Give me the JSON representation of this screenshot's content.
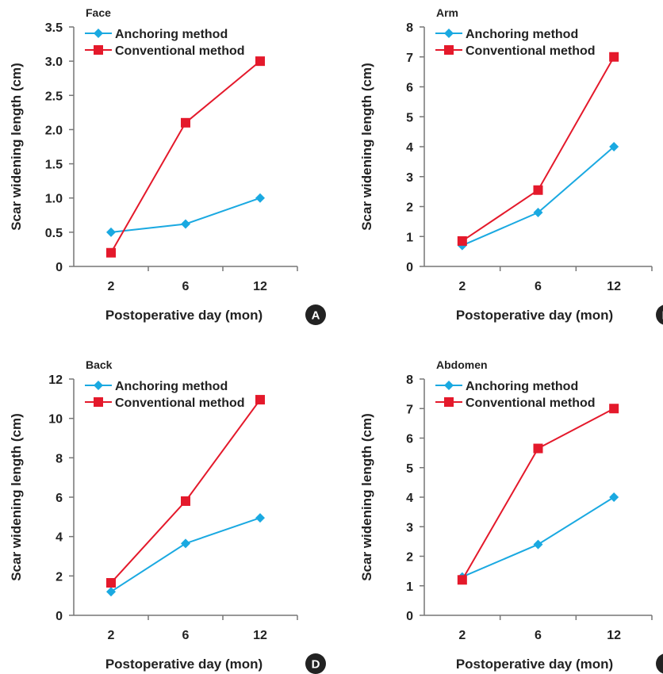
{
  "colors": {
    "anchoring": "#1AA9E1",
    "conventional": "#E4192B",
    "axis": "#777777",
    "badge": "#222222"
  },
  "chart_data": [
    {
      "type": "line",
      "title": "Face",
      "panel_label": "A",
      "xlabel": "Postoperative day (mon)",
      "ylabel": "Scar widening length (cm)",
      "categories": [
        "2",
        "6",
        "12"
      ],
      "ylim": [
        0,
        3.5
      ],
      "yticks": [
        "0",
        "0.5",
        "1.0",
        "1.5",
        "2.0",
        "2.5",
        "3.0",
        "3.5"
      ],
      "grid": false,
      "legend": "top-left",
      "series": [
        {
          "name": "Anchoring method",
          "marker": "diamond",
          "values": [
            0.5,
            0.62,
            1.0
          ]
        },
        {
          "name": "Conventional method",
          "marker": "square",
          "values": [
            0.2,
            2.1,
            3.0
          ]
        }
      ]
    },
    {
      "type": "line",
      "title": "Arm",
      "panel_label": "B",
      "xlabel": "Postoperative day (mon)",
      "ylabel": "Scar widening length (cm)",
      "categories": [
        "2",
        "6",
        "12"
      ],
      "ylim": [
        0,
        8
      ],
      "yticks": [
        "0",
        "1",
        "2",
        "3",
        "4",
        "5",
        "6",
        "7",
        "8"
      ],
      "grid": false,
      "legend": "top-left",
      "series": [
        {
          "name": "Anchoring method",
          "marker": "diamond",
          "values": [
            0.7,
            1.8,
            4.0
          ]
        },
        {
          "name": "Conventional method",
          "marker": "square",
          "values": [
            0.85,
            2.55,
            7.0
          ]
        }
      ]
    },
    {
      "type": "line",
      "title": "Back",
      "panel_label": "D",
      "xlabel": "Postoperative day (mon)",
      "ylabel": "Scar widening length (cm)",
      "categories": [
        "2",
        "6",
        "12"
      ],
      "ylim": [
        0,
        12
      ],
      "yticks": [
        "0",
        "2",
        "4",
        "6",
        "8",
        "10",
        "12"
      ],
      "grid": false,
      "legend": "top-left",
      "series": [
        {
          "name": "Anchoring method",
          "marker": "diamond",
          "values": [
            1.2,
            3.65,
            4.95
          ]
        },
        {
          "name": "Conventional method",
          "marker": "square",
          "values": [
            1.65,
            5.8,
            10.95
          ]
        }
      ]
    },
    {
      "type": "line",
      "title": "Abdomen",
      "panel_label": "E",
      "xlabel": "Postoperative day (mon)",
      "ylabel": "Scar widening length (cm)",
      "categories": [
        "2",
        "6",
        "12"
      ],
      "ylim": [
        0,
        8
      ],
      "yticks": [
        "0",
        "1",
        "2",
        "3",
        "4",
        "5",
        "6",
        "7",
        "8"
      ],
      "grid": false,
      "legend": "top-left",
      "series": [
        {
          "name": "Anchoring method",
          "marker": "diamond",
          "values": [
            1.3,
            2.4,
            4.0
          ]
        },
        {
          "name": "Conventional method",
          "marker": "square",
          "values": [
            1.2,
            5.65,
            7.0
          ]
        }
      ]
    }
  ]
}
